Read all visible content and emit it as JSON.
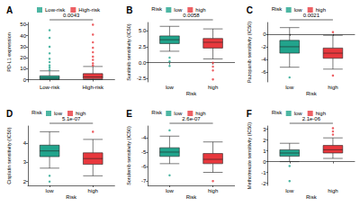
{
  "chart_data": [
    {
      "type": "boxplot",
      "panel": "A",
      "y_label": "PD-L1 expression",
      "categories": [
        "Low-risk",
        "High-risk"
      ],
      "colors": [
        "#21a48c",
        "#e8383d"
      ],
      "boxes": [
        [
          0,
          0.3,
          1.5,
          3.5,
          8
        ],
        [
          0,
          0.8,
          2.5,
          5.5,
          12
        ]
      ],
      "outliers": [
        [
          9,
          11,
          13,
          16,
          19,
          24,
          30,
          38,
          45
        ],
        [
          13,
          15,
          18,
          21,
          25,
          29,
          34,
          41,
          50
        ]
      ],
      "p_value": "0.0043",
      "ylim": [
        -2,
        52
      ],
      "yticks": [
        0,
        10,
        20,
        30,
        40,
        50
      ],
      "legend": "top"
    },
    {
      "type": "boxplot",
      "panel": "B",
      "y_label": "Sunitinib sensitivity (IC50)",
      "x_label": "Risk",
      "legend_title": "Risk",
      "categories": [
        "low",
        "high"
      ],
      "colors": [
        "#21a48c",
        "#e8383d"
      ],
      "boxes": [
        [
          1.8,
          3.0,
          3.6,
          4.2,
          5.7
        ],
        [
          0.6,
          2.3,
          3.2,
          3.8,
          5.3
        ]
      ],
      "outliers": [
        [
          0.8,
          0.2,
          -0.5
        ],
        [
          0.0,
          -0.6,
          -1.2,
          -2.6
        ]
      ],
      "p_value": "0.0058",
      "ylim": [
        -3,
        6.3
      ],
      "yticks": [
        -2.5,
        {
          "value": 0,
          "label": "0.0"
        },
        2.5,
        {
          "value": 5,
          "label": "5.0"
        }
      ],
      "legend": "top"
    },
    {
      "type": "boxplot",
      "panel": "C",
      "y_label": "Pazopanib sensitivity (IC50)",
      "x_label": "Risk",
      "legend_title": "Risk",
      "categories": [
        "low",
        "high"
      ],
      "colors": [
        "#21a48c",
        "#e8383d"
      ],
      "boxes": [
        [
          -5.2,
          -3.0,
          -2.0,
          -1.0,
          1.0
        ],
        [
          -5.5,
          -3.8,
          -3.0,
          -2.2,
          -0.2
        ]
      ],
      "outliers": [
        [
          -6.8
        ],
        [
          0.3,
          -6.5
        ]
      ],
      "p_value": "0.0021",
      "ylim": [
        -7.5,
        1.8
      ],
      "yticks": [
        -6,
        -4,
        -2,
        0
      ],
      "legend": "top"
    },
    {
      "type": "boxplot",
      "panel": "D",
      "y_label": "Cisplatin sensitivity (IC50)",
      "x_label": "Risk",
      "legend_title": "Risk",
      "categories": [
        "low",
        "high"
      ],
      "colors": [
        "#21a48c",
        "#e8383d"
      ],
      "boxes": [
        [
          2.7,
          3.3,
          3.6,
          3.9,
          4.6
        ],
        [
          2.3,
          2.9,
          3.2,
          3.5,
          4.2
        ]
      ],
      "outliers": [
        [
          2.3,
          2.0
        ],
        [
          4.6
        ]
      ],
      "p_value": "5.1e-07",
      "ylim": [
        1.8,
        4.9
      ],
      "yticks": [
        2,
        3,
        4
      ],
      "legend": "top"
    },
    {
      "type": "boxplot",
      "panel": "E",
      "y_label": "Sorafenib sensitivity (IC50)",
      "x_label": "Risk",
      "legend_title": "Risk",
      "categories": [
        "low",
        "high"
      ],
      "colors": [
        "#21a48c",
        "#e8383d"
      ],
      "boxes": [
        [
          -5.8,
          -5.3,
          -5.0,
          -4.7,
          -3.9
        ],
        [
          -6.4,
          -5.8,
          -5.5,
          -5.1,
          -4.3
        ]
      ],
      "outliers": [
        [
          -6.6,
          -3.5
        ],
        [
          -7.0
        ]
      ],
      "p_value": "2.6e-07",
      "ylim": [
        -7.3,
        -3.2
      ],
      "yticks": [
        -7,
        -6,
        -5,
        -4
      ],
      "legend": "top"
    },
    {
      "type": "boxplot",
      "panel": "F",
      "y_label": "Methotrexate sensitivity (IC50)",
      "x_label": "Risk",
      "legend_title": "Risk",
      "categories": [
        "low",
        "high"
      ],
      "colors": [
        "#21a48c",
        "#e8383d"
      ],
      "boxes": [
        [
          0.0,
          0.5,
          0.8,
          1.1,
          1.7
        ],
        [
          0.3,
          0.8,
          1.1,
          1.5,
          2.2
        ]
      ],
      "outliers": [
        [
          -0.4,
          -1.8
        ],
        [
          2.5,
          2.8,
          3.1
        ]
      ],
      "p_value": "2.1e-06",
      "ylim": [
        -2.2,
        3.3
      ],
      "yticks": [
        -2,
        -1,
        0,
        1,
        2,
        3
      ],
      "legend": "top"
    }
  ]
}
